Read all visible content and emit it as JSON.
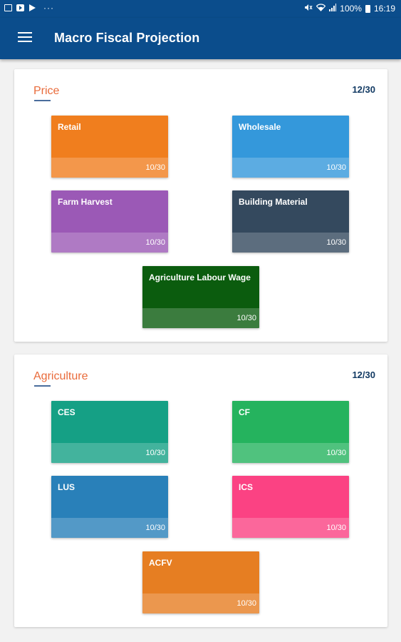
{
  "status_bar": {
    "battery": "100%",
    "time": "16:19",
    "dots": "···"
  },
  "app_bar": {
    "title": "Macro Fiscal Projection"
  },
  "sections": [
    {
      "title": "Price",
      "count": "12/30",
      "tiles": [
        {
          "label": "Retail",
          "count": "10/30",
          "color": "#f07e1e"
        },
        {
          "label": "Wholesale",
          "count": "10/30",
          "color": "#3498db"
        },
        {
          "label": "Farm Harvest",
          "count": "10/30",
          "color": "#9b59b6"
        },
        {
          "label": "Building Material",
          "count": "10/30",
          "color": "#34495e"
        },
        {
          "label": "Agriculture Labour Wage",
          "count": "10/30",
          "color": "#0b5c0e"
        }
      ]
    },
    {
      "title": "Agriculture",
      "count": "12/30",
      "tiles": [
        {
          "label": "CES",
          "count": "10/30",
          "color": "#15a085"
        },
        {
          "label": "CF",
          "count": "10/30",
          "color": "#25b35e"
        },
        {
          "label": "LUS",
          "count": "10/30",
          "color": "#2980b9"
        },
        {
          "label": "ICS",
          "count": "10/30",
          "color": "#fb4283"
        },
        {
          "label": "ACFV",
          "count": "10/30",
          "color": "#e67e22"
        }
      ]
    }
  ]
}
